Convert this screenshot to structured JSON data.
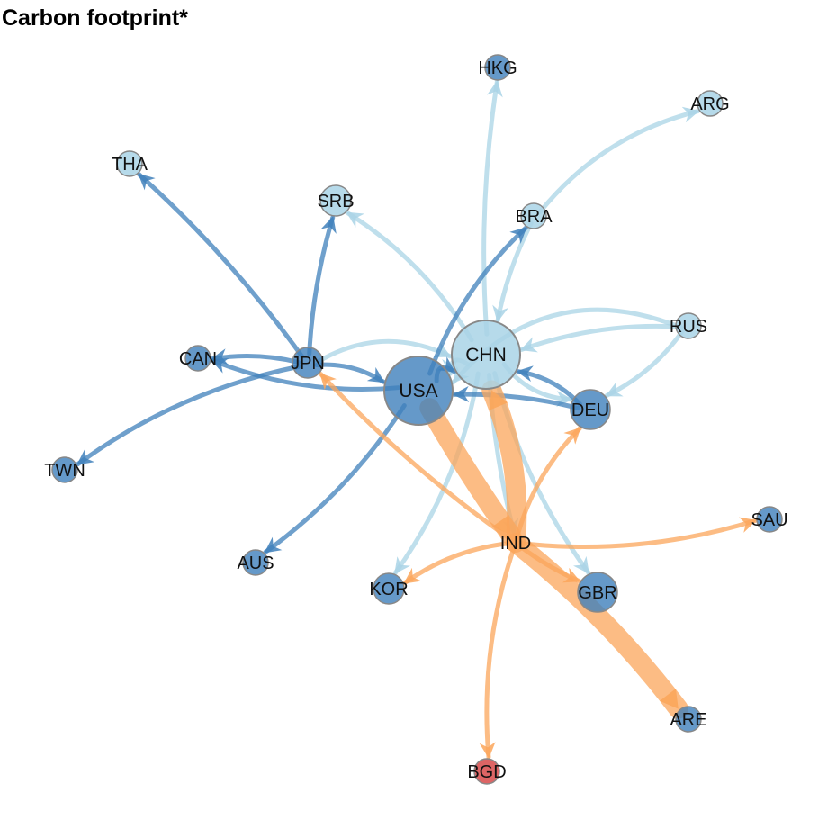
{
  "title": "Carbon footprint*",
  "colors": {
    "light_blue": "#a9d4e6",
    "mid_blue": "#3f80bb",
    "orange": "#fba65b",
    "red": "#d74a4a",
    "node_stroke": "#888888"
  },
  "nodes": [
    {
      "id": "CHN",
      "label": "CHN",
      "color": "light_blue",
      "size": "large"
    },
    {
      "id": "USA",
      "label": "USA",
      "color": "mid_blue",
      "size": "large"
    },
    {
      "id": "IND",
      "label": "IND",
      "color": "light_blue",
      "size": "none"
    },
    {
      "id": "DEU",
      "label": "DEU",
      "color": "mid_blue",
      "size": "medium"
    },
    {
      "id": "JPN",
      "label": "JPN",
      "color": "mid_blue",
      "size": "small"
    },
    {
      "id": "GBR",
      "label": "GBR",
      "color": "mid_blue",
      "size": "medium"
    },
    {
      "id": "KOR",
      "label": "KOR",
      "color": "mid_blue",
      "size": "small"
    },
    {
      "id": "SRB",
      "label": "SRB",
      "color": "light_blue",
      "size": "small"
    },
    {
      "id": "BRA",
      "label": "BRA",
      "color": "light_blue",
      "size": "tiny"
    },
    {
      "id": "RUS",
      "label": "RUS",
      "color": "light_blue",
      "size": "tiny"
    },
    {
      "id": "HKG",
      "label": "HKG",
      "color": "mid_blue",
      "size": "tiny"
    },
    {
      "id": "ARG",
      "label": "ARG",
      "color": "light_blue",
      "size": "tiny"
    },
    {
      "id": "THA",
      "label": "THA",
      "color": "light_blue",
      "size": "tiny"
    },
    {
      "id": "CAN",
      "label": "CAN",
      "color": "mid_blue",
      "size": "tiny"
    },
    {
      "id": "TWN",
      "label": "TWN",
      "color": "mid_blue",
      "size": "tiny"
    },
    {
      "id": "AUS",
      "label": "AUS",
      "color": "mid_blue",
      "size": "tiny"
    },
    {
      "id": "SAU",
      "label": "SAU",
      "color": "mid_blue",
      "size": "tiny"
    },
    {
      "id": "ARE",
      "label": "ARE",
      "color": "mid_blue",
      "size": "tiny"
    },
    {
      "id": "BGD",
      "label": "BGD",
      "color": "red",
      "size": "tiny"
    }
  ],
  "edges": [
    {
      "from": "CHN",
      "to": "HKG",
      "color": "light_blue",
      "weight": "thin"
    },
    {
      "from": "CHN",
      "to": "SRB",
      "color": "light_blue",
      "weight": "thin"
    },
    {
      "from": "CHN",
      "to": "KOR",
      "color": "light_blue",
      "weight": "thin"
    },
    {
      "from": "CHN",
      "to": "GBR",
      "color": "light_blue",
      "weight": "thin"
    },
    {
      "from": "CHN",
      "to": "IND",
      "color": "light_blue",
      "weight": "thin"
    },
    {
      "from": "CHN",
      "to": "DEU",
      "color": "light_blue",
      "weight": "thin"
    },
    {
      "from": "CHN",
      "to": "USA",
      "color": "light_blue",
      "weight": "thin"
    },
    {
      "from": "BRA",
      "to": "ARG",
      "color": "light_blue",
      "weight": "thin"
    },
    {
      "from": "BRA",
      "to": "CHN",
      "color": "light_blue",
      "weight": "thin"
    },
    {
      "from": "RUS",
      "to": "CHN",
      "color": "light_blue",
      "weight": "thin"
    },
    {
      "from": "RUS",
      "to": "USA",
      "color": "light_blue",
      "weight": "thin"
    },
    {
      "from": "RUS",
      "to": "DEU",
      "color": "light_blue",
      "weight": "thin"
    },
    {
      "from": "JPN",
      "to": "CHN",
      "color": "light_blue",
      "weight": "thin"
    },
    {
      "from": "JPN",
      "to": "THA",
      "color": "mid_blue",
      "weight": "thin"
    },
    {
      "from": "JPN",
      "to": "SRB",
      "color": "mid_blue",
      "weight": "thin"
    },
    {
      "from": "JPN",
      "to": "CAN",
      "color": "mid_blue",
      "weight": "thin"
    },
    {
      "from": "JPN",
      "to": "TWN",
      "color": "mid_blue",
      "weight": "thin"
    },
    {
      "from": "JPN",
      "to": "USA",
      "color": "mid_blue",
      "weight": "thin"
    },
    {
      "from": "USA",
      "to": "CAN",
      "color": "mid_blue",
      "weight": "thin"
    },
    {
      "from": "USA",
      "to": "AUS",
      "color": "mid_blue",
      "weight": "thin"
    },
    {
      "from": "USA",
      "to": "BRA",
      "color": "mid_blue",
      "weight": "thin"
    },
    {
      "from": "USA",
      "to": "CHN",
      "color": "mid_blue",
      "weight": "thin"
    },
    {
      "from": "DEU",
      "to": "USA",
      "color": "mid_blue",
      "weight": "thin"
    },
    {
      "from": "DEU",
      "to": "CHN",
      "color": "mid_blue",
      "weight": "thin"
    },
    {
      "from": "USA",
      "to": "IND",
      "color": "orange",
      "weight": "thick"
    },
    {
      "from": "IND",
      "to": "ARE",
      "color": "orange",
      "weight": "thick"
    },
    {
      "from": "IND",
      "to": "CHN",
      "color": "orange",
      "weight": "thick"
    },
    {
      "from": "IND",
      "to": "JPN",
      "color": "orange",
      "weight": "thin"
    },
    {
      "from": "IND",
      "to": "GBR",
      "color": "orange",
      "weight": "thin"
    },
    {
      "from": "IND",
      "to": "KOR",
      "color": "orange",
      "weight": "thin"
    },
    {
      "from": "IND",
      "to": "SAU",
      "color": "orange",
      "weight": "thin"
    },
    {
      "from": "IND",
      "to": "DEU",
      "color": "orange",
      "weight": "thin"
    },
    {
      "from": "IND",
      "to": "BGD",
      "color": "orange",
      "weight": "thin"
    }
  ]
}
